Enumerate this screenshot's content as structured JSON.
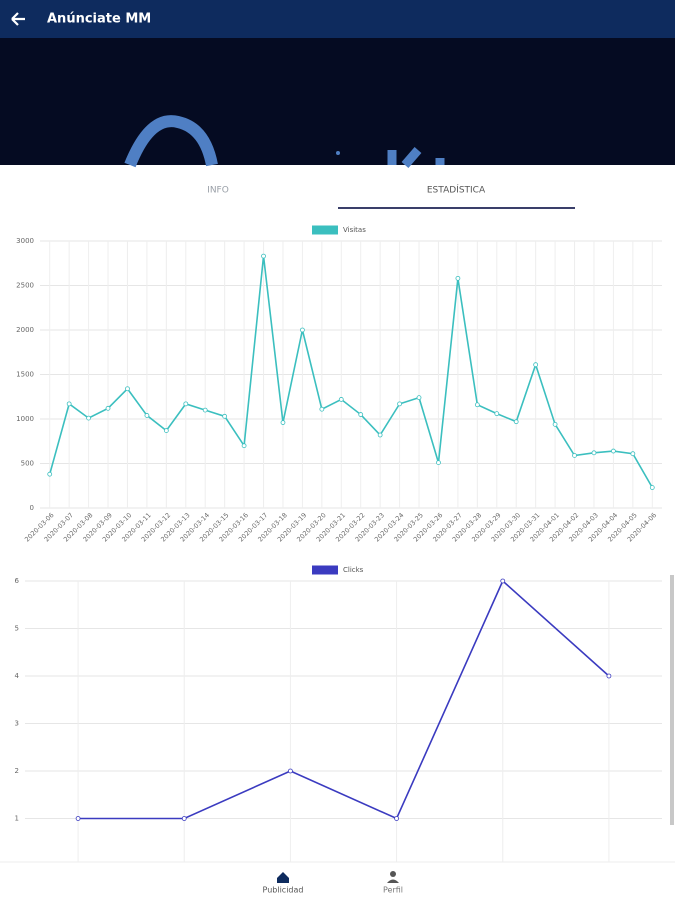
{
  "header": {
    "title": "Anúnciate MM"
  },
  "tabs": [
    "INFO",
    "ESTADÍSTICA"
  ],
  "chart_data": [
    {
      "type": "line",
      "x": [
        "2020-03-06",
        "2020-03-07",
        "2020-03-08",
        "2020-03-09",
        "2020-03-10",
        "2020-03-11",
        "2020-03-12",
        "2020-03-13",
        "2020-03-14",
        "2020-03-15",
        "2020-03-16",
        "2020-03-17",
        "2020-03-18",
        "2020-03-19",
        "2020-03-20",
        "2020-03-21",
        "2020-03-22",
        "2020-03-23",
        "2020-03-24",
        "2020-03-25",
        "2020-03-26",
        "2020-03-27",
        "2020-03-28",
        "2020-03-29",
        "2020-03-30",
        "2020-03-31",
        "2020-04-01",
        "2020-04-02",
        "2020-04-03",
        "2020-04-04",
        "2020-04-05",
        "2020-04-06"
      ],
      "series": [
        {
          "name": "Visitas",
          "color": "#3bbfbf",
          "values": [
            380,
            1170,
            1010,
            1120,
            1340,
            1040,
            870,
            1170,
            1100,
            1030,
            700,
            2830,
            960,
            2000,
            1110,
            1220,
            1050,
            820,
            1170,
            1240,
            510,
            2580,
            1160,
            1060,
            970,
            1610,
            940,
            590,
            620,
            640,
            610,
            230
          ]
        }
      ],
      "ylim": [
        0,
        3000
      ],
      "yticks": [
        0,
        500,
        1000,
        1500,
        2000,
        2500,
        3000
      ],
      "grid": true
    },
    {
      "type": "line",
      "categories": [
        null,
        null,
        null,
        null,
        null,
        null
      ],
      "series": [
        {
          "name": "Clicks",
          "color": "#3b3bc0",
          "values": [
            1,
            1,
            2,
            1,
            6,
            4
          ]
        }
      ],
      "ylim": [
        0,
        6
      ],
      "yticks": [
        1,
        2,
        3,
        4,
        5,
        6
      ],
      "grid": true
    }
  ],
  "nav": [
    "Publicidad",
    "Perfil"
  ]
}
